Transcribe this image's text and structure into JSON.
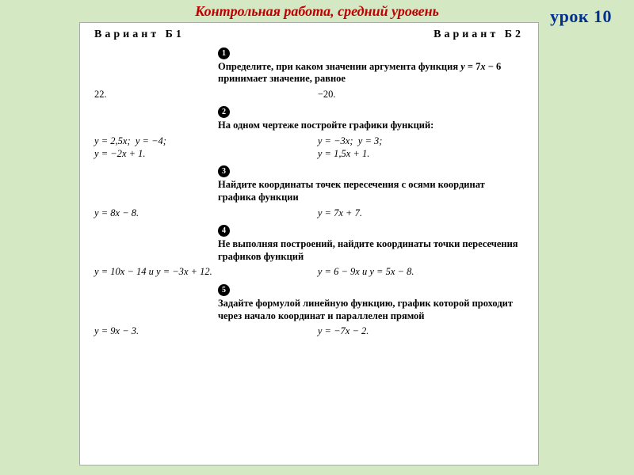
{
  "title": "Контрольная работа, средний уровень",
  "lesson": "урок 10",
  "variant_left": "Вариант Б1",
  "variant_right": "Вариант Б2",
  "questions": [
    {
      "num": "1",
      "prompt": "Определите, при каком значении аргумента функция y = 7x − 6 принимает значение, равное",
      "left": "22.",
      "right": "−20."
    },
    {
      "num": "2",
      "prompt": "На одном чертеже постройте графики функций:",
      "left": "y = 2,5x;  y = −4;\ny = −2x + 1.",
      "right": "y = −3x;  y = 3;\ny = 1,5x + 1."
    },
    {
      "num": "3",
      "prompt": "Найдите координаты точек пересечения с осями координат графика функции",
      "left": "y = 8x − 8.",
      "right": "y = 7x + 7."
    },
    {
      "num": "4",
      "prompt": "Не выполняя построений, найдите координаты точки пересечения графиков функций",
      "left": "y = 10x − 14 и y = −3x + 12.",
      "right": "y = 6 − 9x и y = 5x − 8."
    },
    {
      "num": "5",
      "prompt": "Задайте формулой линейную функцию, график которой проходит через начало координат и параллелен прямой",
      "left": "y = 9x − 3.",
      "right": "y = −7x − 2."
    }
  ]
}
